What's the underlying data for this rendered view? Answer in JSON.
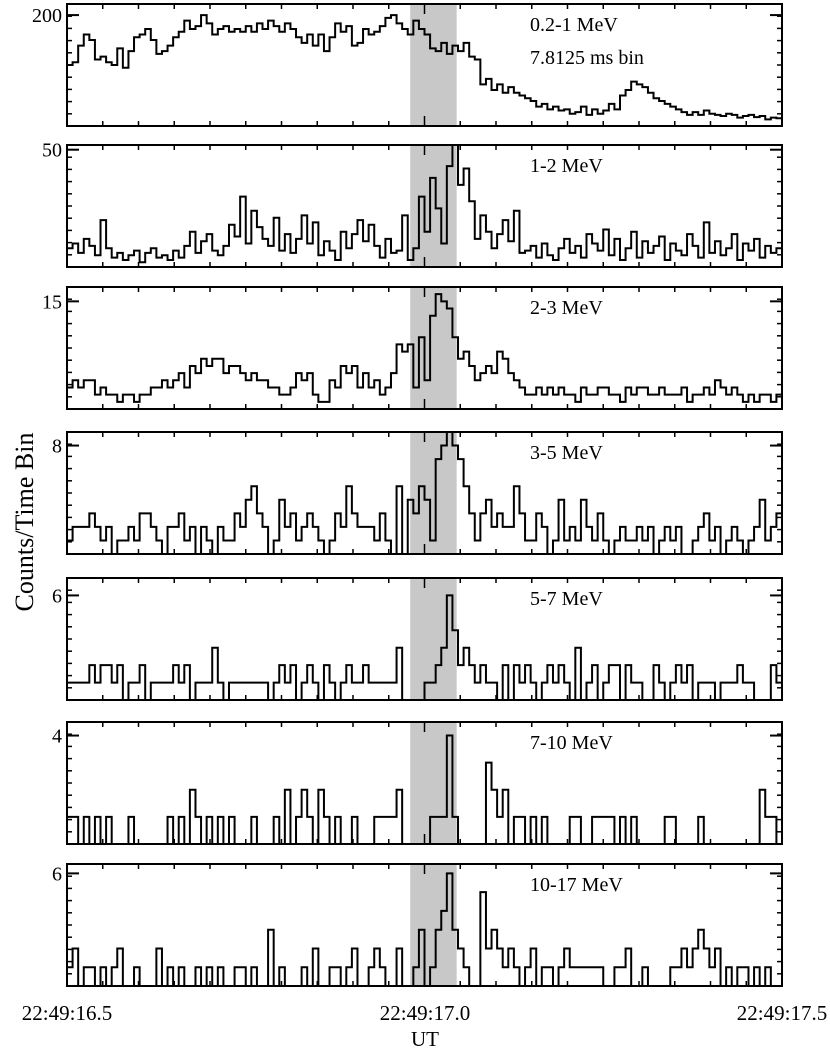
{
  "figure": {
    "ylabel": "Counts/Time Bin",
    "xlabel": "UT",
    "x_tick_labels": [
      "22:49:16.5",
      "22:49:17.0",
      "22:49:17.5"
    ],
    "shaded_band_color": "#c8c8c8",
    "line_color": "#000000"
  },
  "chart_data": [
    {
      "type": "line",
      "step": true,
      "panel_label": "0.2-1 MeV",
      "panel_sublabel": "7.8125 ms bin",
      "x_range": [
        "22:49:16.5",
        "22:49:17.5"
      ],
      "bin_ms": 7.8125,
      "ylim": [
        0,
        220
      ],
      "ytick_labels": [
        {
          "label": "200",
          "value": 200
        }
      ],
      "shaded_interval": [
        "22:49:16.980",
        "22:49:17.045"
      ],
      "values": [
        110,
        115,
        145,
        165,
        155,
        120,
        125,
        115,
        110,
        140,
        105,
        135,
        160,
        165,
        175,
        155,
        130,
        135,
        145,
        160,
        170,
        190,
        175,
        180,
        200,
        185,
        165,
        175,
        180,
        170,
        175,
        170,
        180,
        170,
        185,
        175,
        190,
        180,
        170,
        185,
        175,
        160,
        150,
        165,
        145,
        165,
        135,
        160,
        185,
        170,
        180,
        145,
        150,
        175,
        165,
        170,
        180,
        195,
        200,
        185,
        175,
        165,
        190,
        175,
        165,
        140,
        135,
        150,
        130,
        145,
        135,
        150,
        125,
        120,
        75,
        85,
        65,
        75,
        60,
        70,
        60,
        55,
        50,
        45,
        35,
        40,
        30,
        35,
        28,
        30,
        22,
        25,
        35,
        20,
        30,
        22,
        28,
        40,
        30,
        55,
        65,
        80,
        75,
        70,
        60,
        50,
        45,
        40,
        35,
        30,
        25,
        20,
        25,
        20,
        28,
        22,
        20,
        18,
        22,
        20,
        15,
        18,
        20,
        16,
        18,
        12,
        15,
        14
      ]
    },
    {
      "type": "line",
      "step": true,
      "panel_label": "1-2 MeV",
      "x_range": [
        "22:49:16.5",
        "22:49:17.5"
      ],
      "ylim": [
        0,
        52
      ],
      "ytick_labels": [
        {
          "label": "50",
          "value": 50
        }
      ],
      "shaded_interval": [
        "22:49:16.980",
        "22:49:17.045"
      ],
      "values": [
        8,
        10,
        6,
        12,
        9,
        5,
        20,
        8,
        4,
        6,
        3,
        5,
        7,
        2,
        6,
        8,
        4,
        5,
        3,
        7,
        4,
        9,
        15,
        6,
        11,
        14,
        7,
        5,
        9,
        18,
        13,
        30,
        10,
        24,
        17,
        12,
        9,
        21,
        7,
        14,
        6,
        12,
        22,
        10,
        19,
        5,
        11,
        7,
        3,
        15,
        8,
        14,
        20,
        11,
        18,
        9,
        4,
        12,
        6,
        7,
        22,
        3,
        8,
        30,
        15,
        38,
        25,
        10,
        43,
        52,
        35,
        42,
        28,
        12,
        22,
        15,
        8,
        14,
        20,
        11,
        24,
        6,
        7,
        9,
        4,
        10,
        5,
        3,
        8,
        12,
        6,
        9,
        4,
        14,
        10,
        7,
        16,
        5,
        12,
        3,
        8,
        15,
        4,
        11,
        6,
        9,
        13,
        3,
        10,
        7,
        5,
        14,
        9,
        4,
        19,
        6,
        11,
        5,
        8,
        14,
        3,
        10,
        7,
        12,
        4,
        9,
        6,
        8
      ]
    },
    {
      "type": "line",
      "step": true,
      "panel_label": "2-3 MeV",
      "x_range": [
        "22:49:16.5",
        "22:49:17.5"
      ],
      "ylim": [
        0,
        17
      ],
      "ytick_labels": [
        {
          "label": "15",
          "value": 15
        }
      ],
      "shaded_interval": [
        "22:49:16.980",
        "22:49:17.045"
      ],
      "values": [
        3,
        4,
        3,
        4,
        4,
        2,
        3,
        2,
        2,
        1,
        2,
        2,
        1,
        2,
        2,
        3,
        3,
        4,
        3,
        4,
        5,
        3,
        6,
        5,
        7,
        6,
        7,
        7,
        5,
        6,
        6,
        5,
        4,
        5,
        4,
        4,
        3,
        3,
        2,
        2,
        3,
        5,
        4,
        5,
        2,
        1,
        1,
        4,
        3,
        6,
        5,
        6,
        3,
        5,
        3,
        4,
        2,
        3,
        5,
        9,
        8,
        9,
        3,
        10,
        4,
        13,
        16,
        15,
        14,
        10,
        7,
        8,
        6,
        4,
        5,
        6,
        5,
        8,
        7,
        5,
        4,
        3,
        2,
        2,
        3,
        2,
        3,
        2,
        3,
        2,
        2,
        1,
        3,
        2,
        2,
        3,
        3,
        2,
        2,
        1,
        3,
        2,
        3,
        3,
        2,
        2,
        3,
        2,
        2,
        2,
        3,
        1,
        2,
        2,
        3,
        2,
        4,
        3,
        2,
        3,
        2,
        1,
        2,
        1,
        2,
        2,
        1,
        2
      ]
    },
    {
      "type": "line",
      "step": true,
      "panel_label": "3-5 MeV",
      "x_range": [
        "22:49:16.5",
        "22:49:17.5"
      ],
      "ylim": [
        0,
        9
      ],
      "ytick_labels": [
        {
          "label": "8",
          "value": 8
        }
      ],
      "shaded_interval": [
        "22:49:16.980",
        "22:49:17.045"
      ],
      "values": [
        1,
        2,
        2,
        2,
        3,
        2,
        1,
        2,
        0,
        1,
        1,
        2,
        1,
        3,
        3,
        2,
        1,
        0,
        2,
        2,
        3,
        1,
        2,
        0,
        2,
        1,
        0,
        2,
        1,
        1,
        3,
        2,
        4,
        5,
        3,
        2,
        0,
        1,
        4,
        2,
        3,
        1,
        2,
        3,
        2,
        1,
        0,
        1,
        3,
        2,
        5,
        3,
        2,
        2,
        2,
        1,
        3,
        1,
        0,
        5,
        0,
        4,
        3,
        5,
        4,
        1,
        7,
        8,
        9,
        8,
        7,
        5,
        3,
        1,
        3,
        4,
        2,
        3,
        2,
        2,
        5,
        3,
        1,
        1,
        3,
        2,
        0,
        1,
        4,
        1,
        2,
        1,
        4,
        2,
        1,
        3,
        1,
        0,
        1,
        2,
        1,
        1,
        2,
        1,
        2,
        0,
        1,
        2,
        1,
        2,
        0,
        0,
        1,
        2,
        3,
        1,
        2,
        0,
        1,
        2,
        1,
        0,
        1,
        2,
        4,
        1,
        2,
        3
      ]
    },
    {
      "type": "line",
      "step": true,
      "panel_label": "5-7 MeV",
      "x_range": [
        "22:49:16.5",
        "22:49:17.5"
      ],
      "ylim": [
        0,
        7
      ],
      "ytick_labels": [
        {
          "label": "6",
          "value": 6
        }
      ],
      "shaded_interval": [
        "22:49:16.980",
        "22:49:17.045"
      ],
      "values": [
        1,
        1,
        1,
        1,
        2,
        1,
        2,
        2,
        1,
        2,
        0,
        1,
        1,
        2,
        0,
        1,
        1,
        1,
        1,
        2,
        1,
        2,
        0,
        1,
        1,
        1,
        3,
        1,
        0,
        1,
        1,
        1,
        1,
        1,
        1,
        1,
        0,
        1,
        2,
        1,
        2,
        0,
        1,
        2,
        1,
        0,
        2,
        1,
        0,
        1,
        2,
        1,
        1,
        2,
        1,
        1,
        1,
        1,
        1,
        3,
        0,
        0,
        0,
        0,
        1,
        1,
        2,
        3,
        6,
        4,
        2,
        3,
        2,
        1,
        2,
        1,
        1,
        0,
        2,
        0,
        2,
        1,
        2,
        1,
        0,
        1,
        2,
        1,
        2,
        1,
        0,
        3,
        0,
        1,
        2,
        0,
        1,
        2,
        2,
        0,
        2,
        1,
        1,
        0,
        0,
        2,
        1,
        0,
        1,
        2,
        1,
        2,
        0,
        1,
        1,
        1,
        0,
        1,
        1,
        1,
        2,
        1,
        1,
        0,
        0,
        0,
        2,
        1
      ]
    },
    {
      "type": "line",
      "step": true,
      "panel_label": "7-10 MeV",
      "x_range": [
        "22:49:16.5",
        "22:49:17.5"
      ],
      "ylim": [
        0,
        4.5
      ],
      "ytick_labels": [
        {
          "label": "4",
          "value": 4
        }
      ],
      "shaded_interval": [
        "22:49:16.980",
        "22:49:17.045"
      ],
      "values": [
        1,
        1,
        0,
        1,
        0,
        1,
        0,
        1,
        0,
        0,
        0,
        1,
        0,
        0,
        0,
        0,
        0,
        0,
        1,
        0,
        1,
        0,
        2,
        1,
        0,
        1,
        0,
        1,
        0,
        1,
        0,
        0,
        0,
        1,
        0,
        0,
        0,
        1,
        0,
        2,
        0,
        1,
        2,
        1,
        0,
        2,
        1,
        0,
        1,
        0,
        0,
        1,
        0,
        0,
        0,
        1,
        1,
        1,
        1,
        2,
        0,
        0,
        0,
        0,
        0,
        1,
        1,
        1,
        4,
        1,
        0,
        0,
        0,
        0,
        0,
        3,
        2,
        1,
        2,
        0,
        1,
        1,
        0,
        1,
        0,
        1,
        0,
        0,
        0,
        0,
        1,
        1,
        0,
        0,
        1,
        1,
        1,
        1,
        0,
        1,
        0,
        1,
        0,
        0,
        0,
        0,
        0,
        1,
        1,
        0,
        0,
        0,
        0,
        1,
        0,
        0,
        0,
        0,
        0,
        0,
        0,
        0,
        0,
        0,
        2,
        1,
        1,
        0
      ]
    },
    {
      "type": "line",
      "step": true,
      "panel_label": "10-17 MeV",
      "x_range": [
        "22:49:16.5",
        "22:49:17.5"
      ],
      "ylim": [
        0,
        6.5
      ],
      "ytick_labels": [
        {
          "label": "6",
          "value": 6
        }
      ],
      "shaded_interval": [
        "22:49:16.980",
        "22:49:17.045"
      ],
      "values": [
        1,
        2,
        0,
        1,
        1,
        0,
        1,
        0,
        1,
        2,
        0,
        0,
        1,
        0,
        0,
        0,
        2,
        0,
        1,
        0,
        1,
        0,
        0,
        1,
        0,
        1,
        0,
        1,
        0,
        0,
        1,
        1,
        0,
        1,
        0,
        0,
        3,
        0,
        1,
        0,
        0,
        0,
        1,
        0,
        2,
        0,
        0,
        1,
        1,
        0,
        1,
        2,
        0,
        0,
        1,
        2,
        1,
        0,
        0,
        2,
        0,
        0,
        1,
        3,
        0,
        1,
        3,
        4,
        6,
        3,
        2,
        1,
        0,
        0,
        5,
        2,
        3,
        2,
        1,
        2,
        1,
        0,
        1,
        2,
        0,
        1,
        1,
        0,
        1,
        2,
        1,
        1,
        1,
        1,
        1,
        1,
        0,
        0,
        1,
        1,
        2,
        0,
        0,
        1,
        0,
        0,
        0,
        0,
        1,
        1,
        2,
        1,
        2,
        3,
        2,
        1,
        2,
        0,
        1,
        0,
        1,
        1,
        0,
        1,
        0,
        1,
        0,
        0
      ]
    }
  ]
}
